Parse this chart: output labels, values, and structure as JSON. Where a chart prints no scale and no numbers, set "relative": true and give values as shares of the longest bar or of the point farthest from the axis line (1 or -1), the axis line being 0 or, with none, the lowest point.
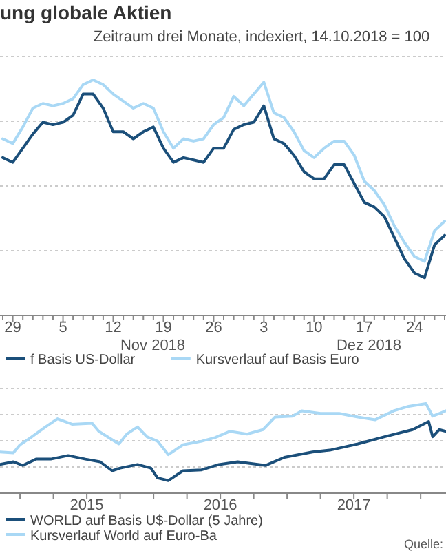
{
  "chart_data": [
    {
      "type": "line",
      "title": "ung globale Aktien",
      "subtitle": "Zeitraum drei Monate, indexiert, 14.10.2018 = 100",
      "relative": true,
      "grid": true,
      "legend": "bottom",
      "annotations": [
        "Nov 2018",
        "Dez 2018"
      ],
      "categories": [
        null,
        "29",
        null,
        null,
        null,
        null,
        "5",
        null,
        null,
        null,
        null,
        "12",
        null,
        null,
        null,
        null,
        "19",
        null,
        null,
        null,
        null,
        "26",
        null,
        null,
        null,
        null,
        "3",
        null,
        null,
        null,
        null,
        "10",
        null,
        null,
        null,
        null,
        "17",
        null,
        null,
        null,
        null,
        "24",
        null,
        null,
        null
      ],
      "series": [
        {
          "name": "f Basis US-Dollar",
          "color": "#1b4f7a",
          "values": [
            0.67,
            0.65,
            0.71,
            0.77,
            0.82,
            0.81,
            0.82,
            0.85,
            0.94,
            0.94,
            0.88,
            0.78,
            0.78,
            0.75,
            0.78,
            0.8,
            0.71,
            0.65,
            0.67,
            0.66,
            0.65,
            0.71,
            0.71,
            0.79,
            0.81,
            0.82,
            0.89,
            0.75,
            0.73,
            0.68,
            0.61,
            0.58,
            0.58,
            0.64,
            0.64,
            0.56,
            0.48,
            0.46,
            0.42,
            0.33,
            0.24,
            0.18,
            0.16,
            0.3,
            0.34
          ]
        },
        {
          "name": "Kursverlauf auf Basis Euro",
          "color": "#a9d8f5",
          "values": [
            0.75,
            0.73,
            0.8,
            0.88,
            0.9,
            0.89,
            0.9,
            0.92,
            0.98,
            1,
            0.98,
            0.94,
            0.91,
            0.88,
            0.9,
            0.88,
            0.78,
            0.71,
            0.75,
            0.74,
            0.75,
            0.81,
            0.84,
            0.93,
            0.89,
            0.94,
            0.99,
            0.86,
            0.84,
            0.78,
            0.7,
            0.67,
            0.71,
            0.74,
            0.74,
            0.68,
            0.57,
            0.53,
            0.47,
            0.38,
            0.31,
            0.25,
            0.23,
            0.36,
            0.4
          ]
        }
      ]
    },
    {
      "type": "line",
      "relative": true,
      "grid": true,
      "legend": "bottom",
      "annotations": [
        "Quelle:"
      ],
      "xlim": [
        2014.85,
        2018.19
      ],
      "xticks": [
        {
          "value": 2015,
          "label": null
        },
        {
          "value": 2015.25,
          "label": null
        },
        {
          "value": 2015.5,
          "label": "2015"
        },
        {
          "value": 2015.75,
          "label": null
        },
        {
          "value": 2016,
          "label": null
        },
        {
          "value": 2016.25,
          "label": null
        },
        {
          "value": 2016.5,
          "label": "2016"
        },
        {
          "value": 2016.75,
          "label": null
        },
        {
          "value": 2017,
          "label": null
        },
        {
          "value": 2017.25,
          "label": null
        },
        {
          "value": 2017.5,
          "label": "2017"
        },
        {
          "value": 2017.75,
          "label": null
        },
        {
          "value": 2018,
          "label": null
        }
      ],
      "series": [
        {
          "name": "WORLD auf Basis U$-Dollar (5 Jahre)",
          "color": "#1b4f7a",
          "x": [
            2014.85,
            2014.95,
            2015.02,
            2015.12,
            2015.23,
            2015.36,
            2015.49,
            2015.6,
            2015.69,
            2015.75,
            2015.88,
            2015.98,
            2016.03,
            2016.11,
            2016.22,
            2016.36,
            2016.49,
            2016.63,
            2016.84,
            2016.98,
            2017.19,
            2017.32,
            2017.53,
            2017.73,
            2017.94,
            2018.06,
            2018.09,
            2018.14,
            2018.19
          ],
          "values": [
            0.32,
            0.35,
            0.31,
            0.38,
            0.38,
            0.42,
            0.38,
            0.35,
            0.25,
            0.28,
            0.32,
            0.28,
            0.17,
            0.14,
            0.25,
            0.26,
            0.32,
            0.35,
            0.31,
            0.4,
            0.46,
            0.48,
            0.55,
            0.63,
            0.71,
            0.8,
            0.63,
            0.71,
            0.69
          ]
        },
        {
          "name": "Kursverlauf World auf Euro-Ba",
          "color": "#a9d8f5",
          "x": [
            2014.85,
            2014.95,
            2015,
            2015.08,
            2015.19,
            2015.28,
            2015.39,
            2015.54,
            2015.59,
            2015.74,
            2015.8,
            2015.88,
            2015.95,
            2016.03,
            2016.11,
            2016.22,
            2016.36,
            2016.46,
            2016.57,
            2016.7,
            2016.82,
            2016.91,
            2017.04,
            2017.11,
            2017.25,
            2017.39,
            2017.53,
            2017.66,
            2017.8,
            2017.91,
            2018.04,
            2018.09,
            2018.14,
            2018.19
          ],
          "values": [
            0.46,
            0.45,
            0.54,
            0.62,
            0.74,
            0.83,
            0.77,
            0.78,
            0.69,
            0.55,
            0.66,
            0.74,
            0.63,
            0.58,
            0.43,
            0.54,
            0.58,
            0.62,
            0.69,
            0.66,
            0.71,
            0.85,
            0.86,
            0.92,
            0.89,
            0.89,
            0.85,
            0.82,
            0.92,
            0.97,
            1,
            0.86,
            0.89,
            0.92
          ]
        }
      ]
    }
  ]
}
